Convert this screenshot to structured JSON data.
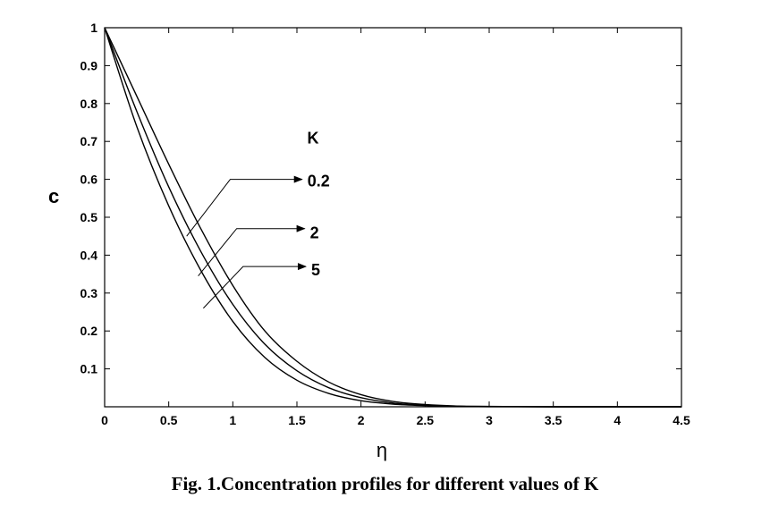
{
  "caption": "Fig. 1.Concentration profiles for different values of K",
  "chart_data": {
    "type": "line",
    "xlabel": "η",
    "ylabel": "c",
    "xlim": [
      0,
      4.5
    ],
    "ylim": [
      0,
      1
    ],
    "xticks": [
      "0",
      "0.5",
      "1",
      "1.5",
      "2",
      "2.5",
      "3",
      "3.5",
      "4",
      "4.5"
    ],
    "yticks": [
      "0.1",
      "0.2",
      "0.3",
      "0.4",
      "0.5",
      "0.6",
      "0.7",
      "0.8",
      "0.9",
      "1"
    ],
    "grid": false,
    "parameter_label": "K",
    "x": [
      0,
      0.25,
      0.5,
      0.75,
      1,
      1.25,
      1.5,
      1.75,
      2,
      2.25,
      2.5,
      2.75,
      3,
      3.5,
      4,
      4.5
    ],
    "series": [
      {
        "name": "0.2",
        "values": [
          1.0,
          0.82,
          0.64,
          0.47,
          0.32,
          0.2,
          0.12,
          0.065,
          0.032,
          0.014,
          0.006,
          0.002,
          0.001,
          0,
          0,
          0
        ]
      },
      {
        "name": "2",
        "values": [
          1.0,
          0.78,
          0.58,
          0.41,
          0.27,
          0.165,
          0.095,
          0.05,
          0.024,
          0.01,
          0.004,
          0.0015,
          0.0005,
          0,
          0,
          0
        ]
      },
      {
        "name": "5",
        "values": [
          1.0,
          0.74,
          0.53,
          0.36,
          0.225,
          0.13,
          0.07,
          0.035,
          0.016,
          0.007,
          0.003,
          0.001,
          0.0003,
          0,
          0,
          0
        ]
      }
    ],
    "colors": {
      "line": "#000000",
      "background": "#ffffff"
    }
  }
}
